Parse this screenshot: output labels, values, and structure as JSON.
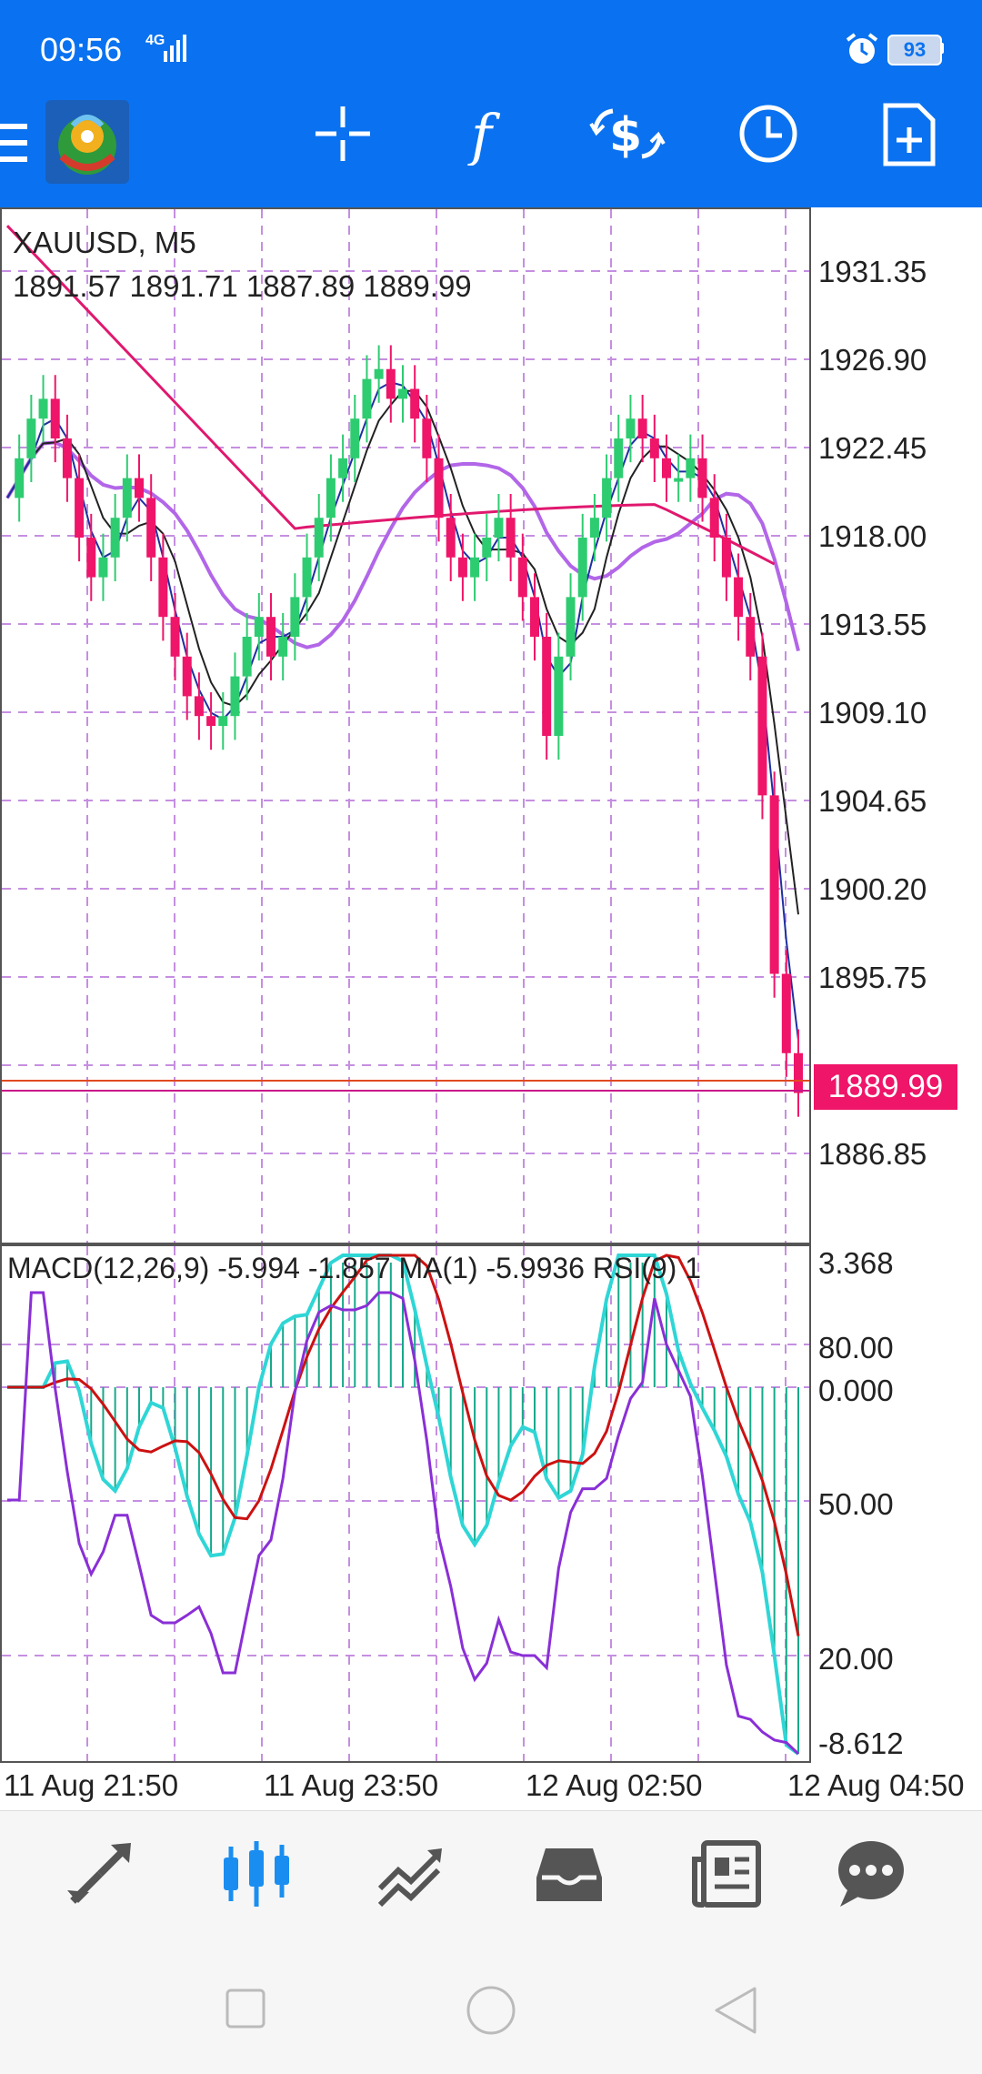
{
  "status": {
    "time": "09:56",
    "network": "4G",
    "battery": "93"
  },
  "chart": {
    "symbol": "XAUUSD, M5",
    "ohlc": "1891.57 1891.71 1887.89 1889.99",
    "current_price": "1889.99",
    "indicator_header": "MACD(12,26,9) -5.994 -1.857 MA(1) -5.9936 RSI(9) 1",
    "price_axis": [
      "1931.35",
      "1926.90",
      "1922.45",
      "1918.00",
      "1913.55",
      "1909.10",
      "1904.65",
      "1900.20",
      "1895.75",
      "1886.85"
    ],
    "indicator_axis": [
      "3.368",
      "80.00",
      "0.000",
      "50.00",
      "20.00",
      "-8.612"
    ],
    "time_axis": [
      "11 Aug 21:50",
      "11 Aug 23:50",
      "12 Aug 02:50",
      "12 Aug 04:50"
    ],
    "colors": {
      "bull": "#2ecc71",
      "bear": "#ef1569",
      "ma_fast": "#1f2fa0",
      "ma_slow": "#222222",
      "ma_purple": "#b266e8",
      "ma_red": "#e0186e",
      "macd_hist": "#16a98a",
      "macd_signal": "#2fd6d6",
      "macd_ma": "#cc1111",
      "rsi": "#8a2fd6",
      "toolbar": "#0a72f0",
      "active_nav": "#1a8ef0"
    }
  },
  "toolbar": {
    "icons": [
      "menu-icon",
      "app-logo",
      "crosshair-icon",
      "indicators-icon",
      "symbols-icon",
      "timeframe-icon",
      "new-order-icon"
    ]
  },
  "bottom_nav": {
    "items": [
      "quotes-icon",
      "chart-icon",
      "trade-icon",
      "history-icon",
      "news-icon",
      "messages-icon"
    ]
  }
}
